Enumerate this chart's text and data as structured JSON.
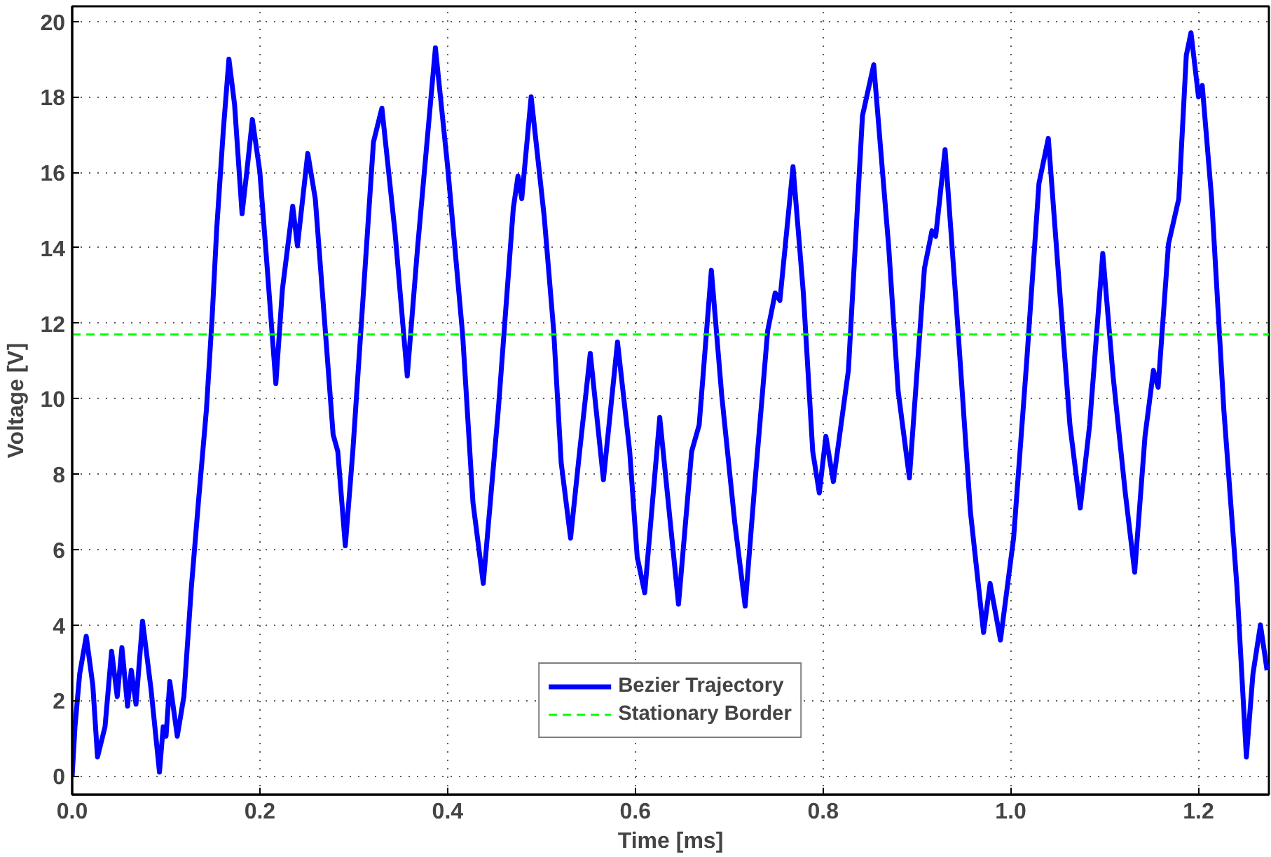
{
  "chart_data": {
    "type": "line",
    "xlabel": "Time [ms]",
    "ylabel": "Voltage [V]",
    "xlim": [
      0,
      1.275
    ],
    "ylim": [
      -0.5,
      20.4
    ],
    "xticks": [
      {
        "value": 0,
        "label": "0.0"
      },
      0.2,
      0.4,
      0.6,
      0.8,
      {
        "value": 1,
        "label": "1.0"
      },
      1.2
    ],
    "yticks": [
      0,
      2,
      4,
      6,
      8,
      10,
      12,
      14,
      16,
      18,
      20
    ],
    "grid": true,
    "legend": "bottom",
    "line_style": "solid",
    "marker": "none",
    "series": [
      {
        "name": "Bezier Trajectory",
        "color": "#0000ff",
        "x": [
          0,
          0.003,
          0.008,
          0.015,
          0.022,
          0.027,
          0.035,
          0.042,
          0.048,
          0.053,
          0.059,
          0.063,
          0.068,
          0.075,
          0.084,
          0.093,
          0.097,
          0.1,
          0.104,
          0.112,
          0.119,
          0.127,
          0.135,
          0.143,
          0.149,
          0.154,
          0.161,
          0.167,
          0.173,
          0.181,
          0.186,
          0.192,
          0.2,
          0.208,
          0.217,
          0.224,
          0.235,
          0.24,
          0.251,
          0.259,
          0.27,
          0.278,
          0.283,
          0.291,
          0.299,
          0.321,
          0.33,
          0.344,
          0.357,
          0.368,
          0.387,
          0.4,
          0.416,
          0.427,
          0.438,
          0.454,
          0.47,
          0.475,
          0.479,
          0.489,
          0.503,
          0.513,
          0.521,
          0.531,
          0.54,
          0.552,
          0.566,
          0.581,
          0.594,
          0.602,
          0.61,
          0.626,
          0.646,
          0.66,
          0.668,
          0.681,
          0.692,
          0.706,
          0.717,
          0.727,
          0.741,
          0.749,
          0.754,
          0.768,
          0.779,
          0.789,
          0.796,
          0.803,
          0.811,
          0.827,
          0.842,
          0.854,
          0.87,
          0.88,
          0.892,
          0.908,
          0.916,
          0.92,
          0.93,
          0.943,
          0.957,
          0.971,
          0.978,
          0.989,
          1.003,
          1.017,
          1.03,
          1.04,
          1.052,
          1.063,
          1.074,
          1.084,
          1.098,
          1.109,
          1.122,
          1.132,
          1.143,
          1.152,
          1.157,
          1.168,
          1.179,
          1.187,
          1.192,
          1.2,
          1.204,
          1.214,
          1.227,
          1.241,
          1.251,
          1.258,
          1.266,
          1.273
        ],
        "values": [
          0,
          1.3,
          2.7,
          3.7,
          2.4,
          0.5,
          1.3,
          3.3,
          2.1,
          3.4,
          1.85,
          2.8,
          1.9,
          4.1,
          2.3,
          0.1,
          1.3,
          1.05,
          2.5,
          1.05,
          2.1,
          5.0,
          7.4,
          9.7,
          12.1,
          14.5,
          17.1,
          19.0,
          17.8,
          14.9,
          16.0,
          17.4,
          16.0,
          13.4,
          10.4,
          12.9,
          15.1,
          14.05,
          16.5,
          15.3,
          11.7,
          9.05,
          8.6,
          6.1,
          8.6,
          16.8,
          17.7,
          14.4,
          10.6,
          14.0,
          19.3,
          16.15,
          11.7,
          7.25,
          5.1,
          9.7,
          15.05,
          15.9,
          15.3,
          18.0,
          14.8,
          11.8,
          8.3,
          6.3,
          8.45,
          11.2,
          7.85,
          11.5,
          8.6,
          5.8,
          4.85,
          9.5,
          4.55,
          8.6,
          9.3,
          13.4,
          10.1,
          6.7,
          4.5,
          7.65,
          11.8,
          12.8,
          12.6,
          16.15,
          12.8,
          8.6,
          7.5,
          9.0,
          7.8,
          10.75,
          17.5,
          18.85,
          14.0,
          10.2,
          7.9,
          13.45,
          14.45,
          14.3,
          16.6,
          12.1,
          7.0,
          3.8,
          5.1,
          3.6,
          6.3,
          11.0,
          15.7,
          16.9,
          12.9,
          9.3,
          7.1,
          9.3,
          13.85,
          10.6,
          7.5,
          5.4,
          9.0,
          10.75,
          10.3,
          14.1,
          15.3,
          19.1,
          19.7,
          18.0,
          18.3,
          15.3,
          9.7,
          5.0,
          0.5,
          2.7,
          4.0,
          2.8
        ]
      }
    ],
    "ref_lines": [
      {
        "axis": "y",
        "value": 11.7,
        "label": "Stationary Border",
        "color": "#00ff00",
        "line_style": "dashed"
      }
    ]
  }
}
